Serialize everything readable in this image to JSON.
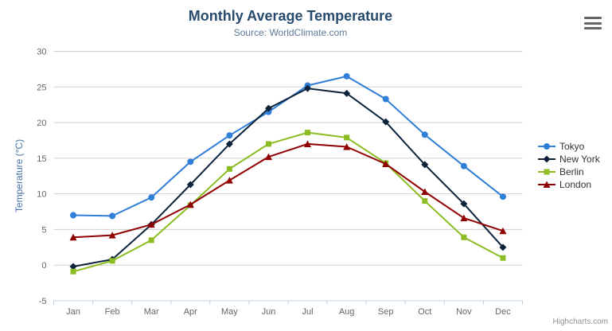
{
  "chart_data": {
    "type": "line",
    "title": "Monthly Average Temperature",
    "subtitle": "Source: WorldClimate.com",
    "categories": [
      "Jan",
      "Feb",
      "Mar",
      "Apr",
      "May",
      "Jun",
      "Jul",
      "Aug",
      "Sep",
      "Oct",
      "Nov",
      "Dec"
    ],
    "xlabel": "",
    "ylabel": "Temperature (°C)",
    "ylim": [
      -5,
      30
    ],
    "yticks": [
      -5,
      0,
      5,
      10,
      15,
      20,
      25,
      30
    ],
    "grid": true,
    "legend_position": "right",
    "series": [
      {
        "name": "Tokyo",
        "color": "#2f7ed8",
        "marker": "circle",
        "values": [
          7.0,
          6.9,
          9.5,
          14.5,
          18.2,
          21.5,
          25.2,
          26.5,
          23.3,
          18.3,
          13.9,
          9.6
        ]
      },
      {
        "name": "New York",
        "color": "#0d233a",
        "marker": "diamond",
        "values": [
          -0.2,
          0.8,
          5.7,
          11.3,
          17.0,
          22.0,
          24.8,
          24.1,
          20.1,
          14.1,
          8.6,
          2.5
        ]
      },
      {
        "name": "Berlin",
        "color": "#8bbc21",
        "marker": "square",
        "values": [
          -0.9,
          0.6,
          3.5,
          8.4,
          13.5,
          17.0,
          18.6,
          17.9,
          14.3,
          9.0,
          3.9,
          1.0
        ]
      },
      {
        "name": "London",
        "color": "#910000",
        "marker": "triangle",
        "values": [
          3.9,
          4.2,
          5.7,
          8.5,
          11.9,
          15.2,
          17.0,
          16.6,
          14.2,
          10.3,
          6.6,
          4.8
        ]
      }
    ]
  },
  "styles": {
    "grid_color": "#d0d0d0",
    "axis_line_color": "#c0d0e0",
    "tick_label_color": "#666666",
    "title_color": "#274b6d",
    "subtitle_color": "#5d7896",
    "axis_title_color": "#4572a7"
  },
  "credits": {
    "text": "Highcharts.com"
  }
}
